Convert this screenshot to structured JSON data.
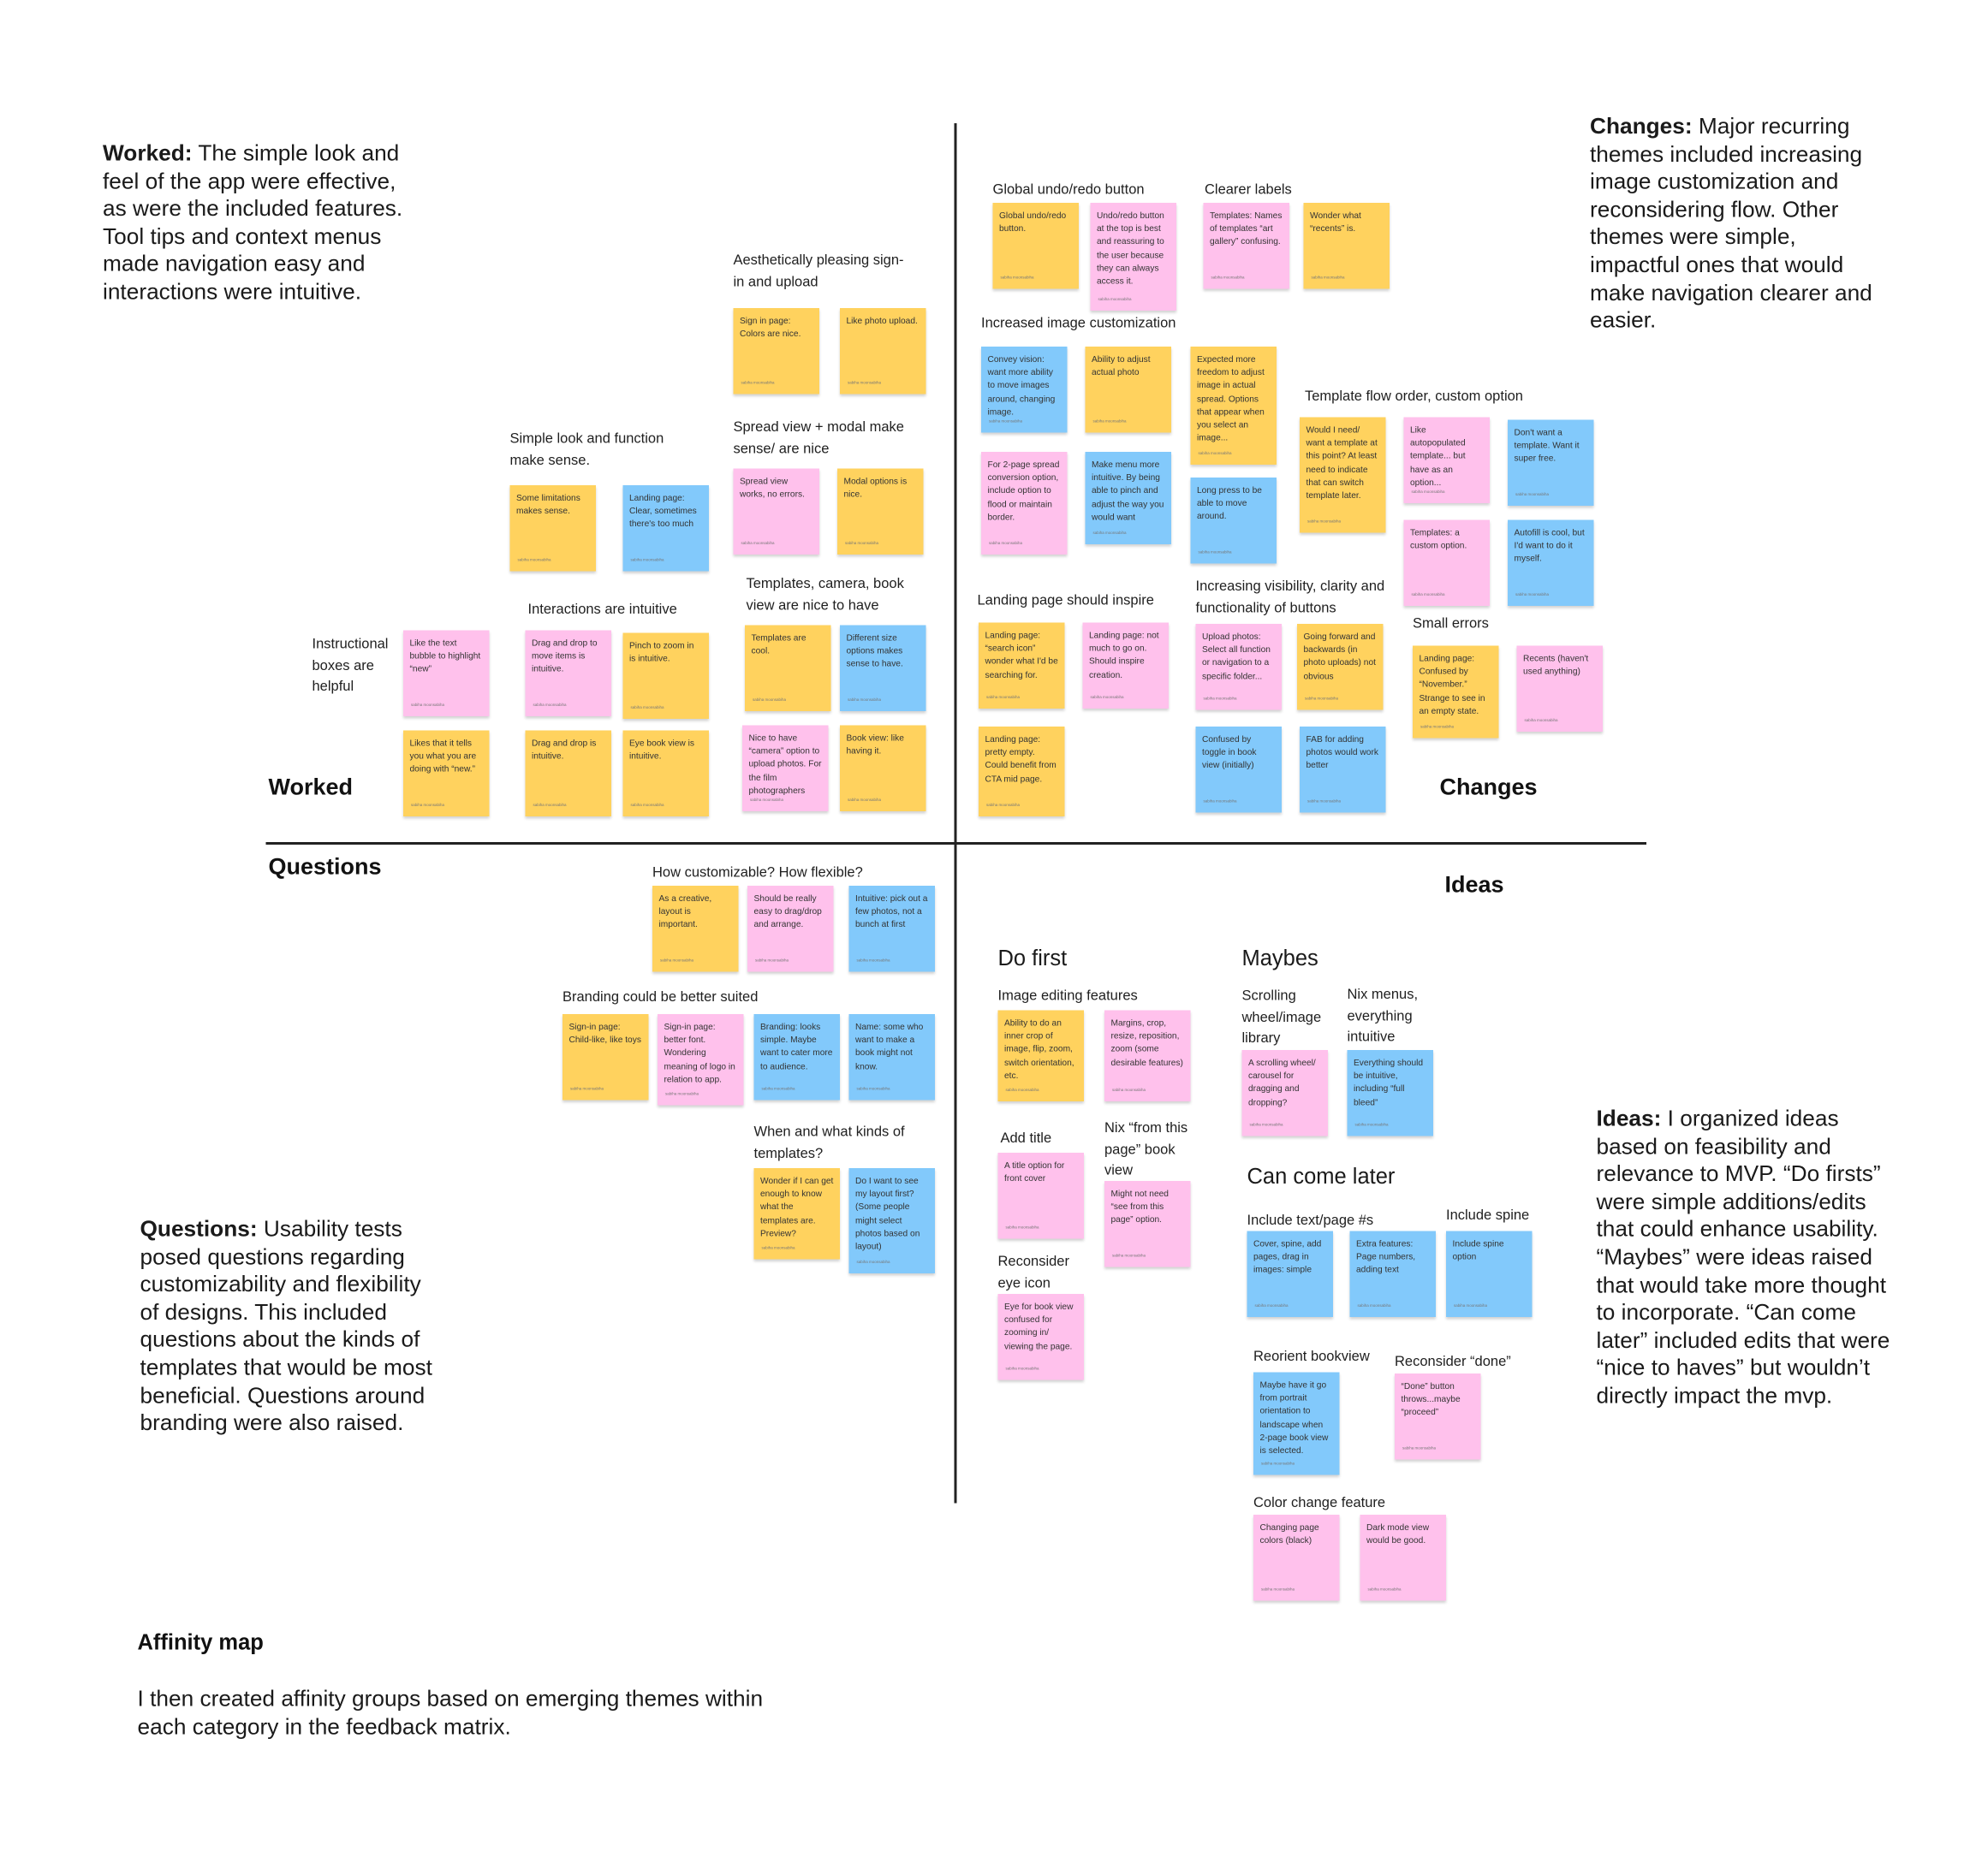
{
  "colors": {
    "yellow": "#FFD25E",
    "pink": "#FFC1EC",
    "blue": "#82C9FB",
    "line": "#222222"
  },
  "descriptions": {
    "worked": {
      "lead": "Worked:",
      "text": "The simple look and feel of the app were effective, as were the included features. Tool tips and context menus made navigation easy and interactions were intuitive."
    },
    "changes": {
      "lead": "Changes:",
      "text": "Major recurring themes included increasing image customization and reconsidering flow. Other themes were simple, impactful ones that would make navigation clearer and easier."
    },
    "questions": {
      "lead": "Questions:",
      "text": "Usability tests posed questions regarding customizability and flexibility of designs. This included questions about the kinds of templates that would be most beneficial. Questions around branding were also raised."
    },
    "ideas": {
      "lead": "Ideas:",
      "text": "I organized ideas based on feasibility and relevance to MVP. “Do firsts” were simple additions/edits that could enhance usability. “Maybes” were ideas raised that would take more thought to incorporate. “Can come later” included edits that were “nice to haves” but wouldn’t directly impact the mvp."
    }
  },
  "quadrants": {
    "worked": "Worked",
    "changes": "Changes",
    "questions": "Questions",
    "ideas": "Ideas"
  },
  "footer": {
    "title": "Affinity map",
    "text": "I then created affinity groups based on emerging themes within each category in the feedback matrix."
  },
  "sticky_signature": "sabiha moonsabiha",
  "headings": {
    "aesthetic": "Aesthetically pleasing sign-in and upload",
    "spread": "Spread view + modal make sense/ are nice",
    "simple": "Simple look and function make sense.",
    "interactions": "Interactions are intuitive",
    "templates": "Templates, camera, book view are nice to have",
    "instructional": "Instructional boxes are helpful",
    "global_undo": "Global undo/redo button",
    "clearer": "Clearer labels",
    "increased": "Increased image customization",
    "flow": "Template flow order, custom option",
    "landing": "Landing page should inspire",
    "visibility": "Increasing visibility, clarity and  functionality of buttons",
    "small_errors": "Small errors",
    "customizable": "How customizable? How flexible?",
    "branding": "Branding could be better suited",
    "when_templates": "When and what kinds of templates?",
    "do_first": "Do first",
    "maybes": "Maybes",
    "can_later": "Can come later",
    "image_editing": "Image editing features",
    "add_title": "Add title",
    "nix_from": "Nix “from this page” book view",
    "reconsider_eye": "Reconsider eye icon",
    "scrolling": "Scrolling wheel/image library",
    "nix_menus": "Nix menus, everything intuitive",
    "include_text": "Include text/page #s",
    "include_spine": "Include spine",
    "reorient": "Reorient bookview",
    "reconsider_done": "Reconsider “done”",
    "color_change": "Color change feature"
  },
  "notes": {
    "signin_colors": "Sign in page: Colors are nice.",
    "photo_upload": "Like photo upload.",
    "spread_view": "Spread view works, no errors.",
    "modal": "Modal options is nice.",
    "limitations": "Some limitations makes sense.",
    "landing_clear": "Landing page: Clear, sometimes there's too much",
    "text_bubble": "Like the text bubble to highlight “new”",
    "tells_new": "Likes that it tells you what you are doing with “new.”",
    "drag_move": "Drag and drop to move items is intuitive.",
    "pinch": "Pinch to zoom in is intuitive.",
    "drag_drop": "Drag and drop is intuitive.",
    "eye_book": "Eye book view is intuitive.",
    "templates_cool": "Templates are cool.",
    "size_options": "Different size options makes sense to have.",
    "camera": "Nice to have “camera” option to upload photos. For the film photographers",
    "book_view": "Book view: like having it.",
    "global_undo": "Global undo/redo button.",
    "undo_top": "Undo/redo button at the top is best and reassuring to the user because they can always access it.",
    "templates_names": "Templates: Names of templates “art gallery” confusing.",
    "recents": "Wonder what “recents” is.",
    "convey_vision": "Convey vision: want more ability to move images around, changing image.",
    "adjust_photo": "Ability to adjust actual photo",
    "expected_freedom": "Expected more freedom to adjust image in actual spread. Options that appear when you select an image...",
    "spread_conversion": "For 2-page spread conversion option, include option to flood or maintain border.",
    "menu_intuitive": "Make menu more intuitive. By being able to pinch and adjust the way you would want",
    "long_press": "Long press to be able to move around.",
    "need_template": "Would I need/ want a template at this point? At least need to indicate that can switch template later.",
    "autopopulated": "Like autopopulated template... but have as an option...",
    "dont_want_template": "Don't want a template. Want it super free.",
    "custom_option": "Templates: a custom option.",
    "autofill": "Autofill is cool, but I'd want to do it myself.",
    "search_icon": "Landing page: “search icon” wonder what I'd be searching for.",
    "not_much": "Landing page: not much to go on. Should inspire creation.",
    "pretty_empty": "Landing page: pretty empty. Could benefit from CTA mid page.",
    "upload_photos": "Upload photos: Select all function or navigation to a specific folder...",
    "forward_back": "Going forward and backwards (in photo uploads) not obvious",
    "confused_toggle": "Confused by toggle in book view (initially)",
    "fab": "FAB for adding photos would work better",
    "november": "Landing page: Confused by “November.” Strange to see in an empty state.",
    "recents_unused": "Recents (haven't used anything)",
    "creative_layout": "As a creative, layout is important.",
    "easy_drag": "Should be really easy to drag/drop and arrange.",
    "pick_out": "Intuitive: pick out a few photos, not a bunch at first",
    "child_like": "Sign-in page: Child-like, like toys",
    "better_font": "Sign-in page: better font. Wondering meaning of logo in relation to app.",
    "branding_simple": "Branding: looks simple. Maybe want to cater more to audience.",
    "name_book": "Name: some who want to make a book might not know.",
    "wonder_templates": "Wonder if I can get enough to know what the templates are. Preview?",
    "see_layout": "Do I want to see my layout first? (Some people might select photos based on layout)",
    "inner_crop": "Ability to do an inner crop of image, flip, zoom, switch orientation, etc.",
    "margins": "Margins, crop, resize, reposition, zoom (some desirable features)",
    "title_option": "A title option for front cover",
    "might_not": "Might not need “see from this page” option.",
    "eye_confused": "Eye for book view confused for zooming in/ viewing the page.",
    "scroll_wheel": "A scrolling wheel/ carousel for dragging and dropping?",
    "full_bleed": "Everything should be intuitive, including “full bleed”",
    "cover_spine": "Cover, spine, add pages, drag in images: simple",
    "extra_features": "Extra features: Page numbers, adding text",
    "spine_option": "Include spine option",
    "portrait": "Maybe have it go from portrait orientation to landscape when 2-page book view is selected.",
    "done_button": "“Done” button throws...maybe “proceed”",
    "page_colors": "Changing page colors (black)",
    "dark_mode": "Dark mode view would be good."
  }
}
